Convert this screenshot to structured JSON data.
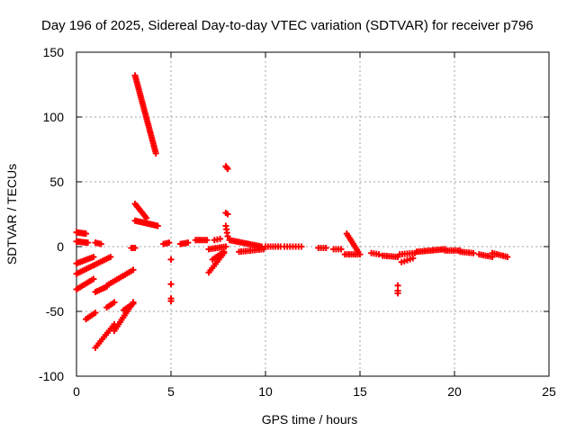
{
  "chart_data": {
    "type": "scatter",
    "title": "Day 196 of 2025, Sidereal Day-to-day VTEC variation (SDTVAR) for receiver p796",
    "xlabel": "GPS time / hours",
    "ylabel": "SDTVAR / TECUs",
    "xlim": [
      0,
      25
    ],
    "ylim": [
      -100,
      150
    ],
    "xticks": [
      0,
      5,
      10,
      15,
      20,
      25
    ],
    "yticks": [
      -100,
      -50,
      0,
      50,
      100,
      150
    ],
    "grid": true,
    "marker": "+",
    "color": "#ff0000",
    "segments": [
      {
        "x0": 0.0,
        "y0": 11,
        "x1": 0.5,
        "y1": 10,
        "n": 8
      },
      {
        "x0": 0.0,
        "y0": 4,
        "x1": 0.6,
        "y1": 3,
        "n": 8
      },
      {
        "x0": 0.0,
        "y0": -13,
        "x1": 0.9,
        "y1": -8,
        "n": 10
      },
      {
        "x0": 0.0,
        "y0": -21,
        "x1": 1.8,
        "y1": -8,
        "n": 18
      },
      {
        "x0": 0.0,
        "y0": -33,
        "x1": 0.9,
        "y1": -25,
        "n": 10
      },
      {
        "x0": 0.5,
        "y0": -56,
        "x1": 1.0,
        "y1": -51,
        "n": 6
      },
      {
        "x0": 1.0,
        "y0": 3,
        "x1": 1.3,
        "y1": 2,
        "n": 4
      },
      {
        "x0": 1.0,
        "y0": -35,
        "x1": 1.6,
        "y1": -31,
        "n": 7
      },
      {
        "x0": 1.0,
        "y0": -78,
        "x1": 2.0,
        "y1": -60,
        "n": 12
      },
      {
        "x0": 1.6,
        "y0": -30,
        "x1": 3.0,
        "y1": -18,
        "n": 14
      },
      {
        "x0": 1.6,
        "y0": -47,
        "x1": 2.0,
        "y1": -43,
        "n": 5
      },
      {
        "x0": 2.0,
        "y0": -65,
        "x1": 3.0,
        "y1": -43,
        "n": 14
      },
      {
        "x0": 2.5,
        "y0": -49,
        "x1": 3.0,
        "y1": -44,
        "n": 6
      },
      {
        "x0": 2.9,
        "y0": -1,
        "x1": 3.1,
        "y1": -1,
        "n": 3
      },
      {
        "x0": 3.1,
        "y0": 132,
        "x1": 4.2,
        "y1": 72,
        "n": 40
      },
      {
        "x0": 3.1,
        "y0": 33,
        "x1": 3.7,
        "y1": 22,
        "n": 10
      },
      {
        "x0": 3.1,
        "y0": 20,
        "x1": 4.3,
        "y1": 16,
        "n": 16
      },
      {
        "x0": 4.6,
        "y0": 2,
        "x1": 4.9,
        "y1": 3,
        "n": 4
      },
      {
        "x0": 5.0,
        "y0": -10,
        "x1": 5.0,
        "y1": -10,
        "n": 1
      },
      {
        "x0": 5.0,
        "y0": -29,
        "x1": 5.0,
        "y1": -29,
        "n": 1
      },
      {
        "x0": 5.0,
        "y0": -42,
        "x1": 5.0,
        "y1": -40,
        "n": 2
      },
      {
        "x0": 5.5,
        "y0": 2,
        "x1": 5.9,
        "y1": 3,
        "n": 5
      },
      {
        "x0": 6.3,
        "y0": 5,
        "x1": 6.9,
        "y1": 5,
        "n": 7
      },
      {
        "x0": 7.0,
        "y0": -20,
        "x1": 7.8,
        "y1": -5,
        "n": 10
      },
      {
        "x0": 7.0,
        "y0": -2,
        "x1": 7.9,
        "y1": 0,
        "n": 9
      },
      {
        "x0": 7.2,
        "y0": -10,
        "x1": 7.8,
        "y1": -4,
        "n": 7
      },
      {
        "x0": 7.3,
        "y0": 5,
        "x1": 7.6,
        "y1": 6,
        "n": 3
      },
      {
        "x0": 7.9,
        "y0": 62,
        "x1": 8.0,
        "y1": 60,
        "n": 3
      },
      {
        "x0": 7.9,
        "y0": 26,
        "x1": 8.0,
        "y1": 25,
        "n": 2
      },
      {
        "x0": 7.9,
        "y0": 16,
        "x1": 8.0,
        "y1": 8,
        "n": 4
      },
      {
        "x0": 8.1,
        "y0": 5,
        "x1": 9.8,
        "y1": 0,
        "n": 18
      },
      {
        "x0": 8.6,
        "y0": -4,
        "x1": 9.9,
        "y1": -2,
        "n": 12
      },
      {
        "x0": 10.0,
        "y0": 0,
        "x1": 10.8,
        "y1": 0,
        "n": 7
      },
      {
        "x0": 11.0,
        "y0": 0,
        "x1": 11.9,
        "y1": 0,
        "n": 7
      },
      {
        "x0": 12.8,
        "y0": -1,
        "x1": 13.2,
        "y1": -1,
        "n": 4
      },
      {
        "x0": 13.6,
        "y0": -2,
        "x1": 14.0,
        "y1": -2,
        "n": 4
      },
      {
        "x0": 14.3,
        "y0": 10,
        "x1": 14.9,
        "y1": -4,
        "n": 10
      },
      {
        "x0": 14.2,
        "y0": -6,
        "x1": 15.0,
        "y1": -6,
        "n": 8
      },
      {
        "x0": 15.6,
        "y0": -5,
        "x1": 16.0,
        "y1": -6,
        "n": 4
      },
      {
        "x0": 16.2,
        "y0": -7,
        "x1": 17.0,
        "y1": -8,
        "n": 8
      },
      {
        "x0": 17.0,
        "y0": -30,
        "x1": 17.0,
        "y1": -30,
        "n": 1
      },
      {
        "x0": 17.0,
        "y0": -36,
        "x1": 17.0,
        "y1": -34,
        "n": 2
      },
      {
        "x0": 17.1,
        "y0": -6,
        "x1": 17.9,
        "y1": -5,
        "n": 7
      },
      {
        "x0": 17.2,
        "y0": -12,
        "x1": 17.8,
        "y1": -9,
        "n": 5
      },
      {
        "x0": 18.0,
        "y0": -4,
        "x1": 19.5,
        "y1": -2,
        "n": 15
      },
      {
        "x0": 19.5,
        "y0": -3,
        "x1": 20.3,
        "y1": -3,
        "n": 8
      },
      {
        "x0": 20.3,
        "y0": -4,
        "x1": 21.0,
        "y1": -5,
        "n": 7
      },
      {
        "x0": 21.3,
        "y0": -6,
        "x1": 22.0,
        "y1": -8,
        "n": 7
      },
      {
        "x0": 22.0,
        "y0": -5,
        "x1": 22.8,
        "y1": -8,
        "n": 8
      }
    ]
  }
}
